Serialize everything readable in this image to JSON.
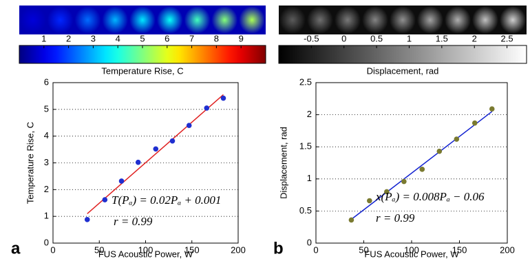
{
  "chart_data": [
    {
      "type": "scatter",
      "panel_label": "a",
      "xlabel": "FUS Acoustic Power, W",
      "ylabel": "Temperature Rise, C",
      "x": [
        37,
        56,
        74,
        92,
        111,
        129,
        147,
        166,
        184
      ],
      "series": [
        {
          "color": "#1f2fd0",
          "values": [
            0.88,
            1.62,
            2.32,
            3.02,
            3.52,
            3.82,
            4.4,
            5.05,
            5.42
          ]
        }
      ],
      "fit": {
        "color": "#e02020",
        "x": [
          37,
          184
        ],
        "y": [
          1.1,
          5.55
        ]
      },
      "equation": "T(Pₐ) = 0.02Pₐ + 0.001",
      "r_text": "r = 0.99",
      "xlim": [
        0,
        200
      ],
      "xticks": [
        0,
        50,
        100,
        150,
        200
      ],
      "ylim": [
        0,
        6
      ],
      "yticks": [
        0,
        1,
        2,
        3,
        4,
        5,
        6
      ],
      "grid": true,
      "colorbar": {
        "label": "Temperature Rise, C",
        "colormap": "jet",
        "lim": [
          0,
          10
        ],
        "ticks": [
          1,
          2,
          3,
          4,
          5,
          6,
          7,
          8,
          9
        ]
      }
    },
    {
      "type": "scatter",
      "panel_label": "b",
      "xlabel": "FUS Acoustic Power, W",
      "ylabel": "Displacement, rad",
      "x": [
        37,
        56,
        74,
        92,
        111,
        129,
        147,
        166,
        184
      ],
      "series": [
        {
          "color": "#7a7a30",
          "values": [
            0.36,
            0.66,
            0.8,
            0.96,
            1.15,
            1.43,
            1.62,
            1.87,
            2.09
          ]
        }
      ],
      "fit": {
        "color": "#1020d0",
        "x": [
          37,
          184
        ],
        "y": [
          0.37,
          2.05
        ]
      },
      "equation": "x(Pₐ) = 0.008Pₐ − 0.06",
      "r_text": "r = 0.99",
      "xlim": [
        0,
        200
      ],
      "xticks": [
        0,
        50,
        100,
        150,
        200
      ],
      "ylim": [
        0,
        2.5
      ],
      "yticks": [
        0,
        0.5,
        1,
        1.5,
        2,
        2.5
      ],
      "grid": true,
      "colorbar": {
        "label": "Displacement, rad",
        "colormap": "gray",
        "lim": [
          -1,
          2.8
        ],
        "ticks": [
          -0.5,
          0,
          0.5,
          1,
          1.5,
          2,
          2.5
        ]
      }
    }
  ]
}
